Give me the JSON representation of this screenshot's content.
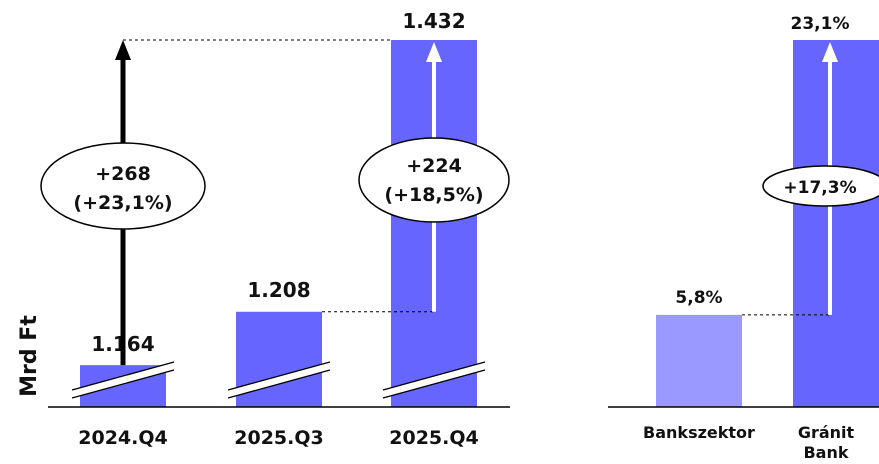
{
  "colors": {
    "bar": "#6666FF",
    "bar_light": "#9999FF",
    "axis": "#000000",
    "ellipse_fill": "#ffffff"
  },
  "chart_data": [
    {
      "type": "bar",
      "ylabel": "Mrd Ft",
      "axis_break": true,
      "categories": [
        "2024.Q4",
        "2025.Q3",
        "2025.Q4"
      ],
      "values": [
        1164,
        1208,
        1432
      ],
      "value_labels": [
        "1.164",
        "1.208",
        "1.432"
      ],
      "annotations": [
        {
          "from": "2024.Q4",
          "to": "2025.Q4",
          "line1": "+268",
          "line2": "(+23,1%)"
        },
        {
          "from": "2025.Q3",
          "to": "2025.Q4",
          "line1": "+224",
          "line2": "(+18,5%)"
        }
      ]
    },
    {
      "type": "bar",
      "categories": [
        "Bankszektor",
        "Gránit Bank"
      ],
      "category_lines": [
        [
          "Bankszektor"
        ],
        [
          "Gránit",
          "Bank"
        ]
      ],
      "values": [
        5.8,
        23.1
      ],
      "value_labels": [
        "5,8%",
        "23,1%"
      ],
      "annotations": [
        {
          "from": "Bankszektor",
          "to": "Gránit Bank",
          "line1": "+17,3%"
        }
      ]
    }
  ]
}
